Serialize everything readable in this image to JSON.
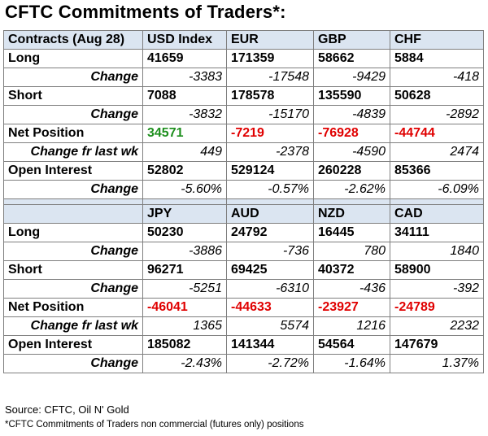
{
  "title": "CFTC Commitments of Traders*:",
  "colors": {
    "header_bg": "#dbe5f1",
    "positive": "#1e8f1e",
    "negative": "#e00000"
  },
  "table1": {
    "header": [
      "Contracts (Aug 28)",
      "USD Index",
      "EUR",
      "GBP",
      "CHF"
    ],
    "long": {
      "label": "Long",
      "values": [
        "41659",
        "171359",
        "58662",
        "5884"
      ]
    },
    "long_change": {
      "label": "Change",
      "values": [
        "-3383",
        "-17548",
        "-9429",
        "-418"
      ]
    },
    "short": {
      "label": "Short",
      "values": [
        "7088",
        "178578",
        "135590",
        "50628"
      ]
    },
    "short_change": {
      "label": "Change",
      "values": [
        "-3832",
        "-15170",
        "-4839",
        "-2892"
      ]
    },
    "net": {
      "label": "Net Position",
      "values": [
        "34571",
        "-7219",
        "-76928",
        "-44744"
      ]
    },
    "net_change": {
      "label": "Change fr last wk",
      "values": [
        "449",
        "-2378",
        "-4590",
        "2474"
      ]
    },
    "oi": {
      "label": "Open Interest",
      "values": [
        "52802",
        "529124",
        "260228",
        "85366"
      ]
    },
    "oi_change": {
      "label": "Change",
      "values": [
        "-5.60%",
        "-0.57%",
        "-2.62%",
        "-6.09%"
      ]
    }
  },
  "table2": {
    "header": [
      "",
      "JPY",
      "AUD",
      "NZD",
      "CAD"
    ],
    "long": {
      "label": "Long",
      "values": [
        "50230",
        "24792",
        "16445",
        "34111"
      ]
    },
    "long_change": {
      "label": "Change",
      "values": [
        "-3886",
        "-736",
        "780",
        "1840"
      ]
    },
    "short": {
      "label": "Short",
      "values": [
        "96271",
        "69425",
        "40372",
        "58900"
      ]
    },
    "short_change": {
      "label": "Change",
      "values": [
        "-5251",
        "-6310",
        "-436",
        "-392"
      ]
    },
    "net": {
      "label": "Net Position",
      "values": [
        "-46041",
        "-44633",
        "-23927",
        "-24789"
      ]
    },
    "net_change": {
      "label": "Change fr last wk",
      "values": [
        "1365",
        "5574",
        "1216",
        "2232"
      ]
    },
    "oi": {
      "label": "Open Interest",
      "values": [
        "185082",
        "141344",
        "54564",
        "147679"
      ]
    },
    "oi_change": {
      "label": "Change",
      "values": [
        "-2.43%",
        "-2.72%",
        "-1.64%",
        "1.37%"
      ]
    }
  },
  "source": "Source: CFTC, Oil N' Gold",
  "footnote": "*CFTC Commitments of Traders non commercial (futures only) positions"
}
